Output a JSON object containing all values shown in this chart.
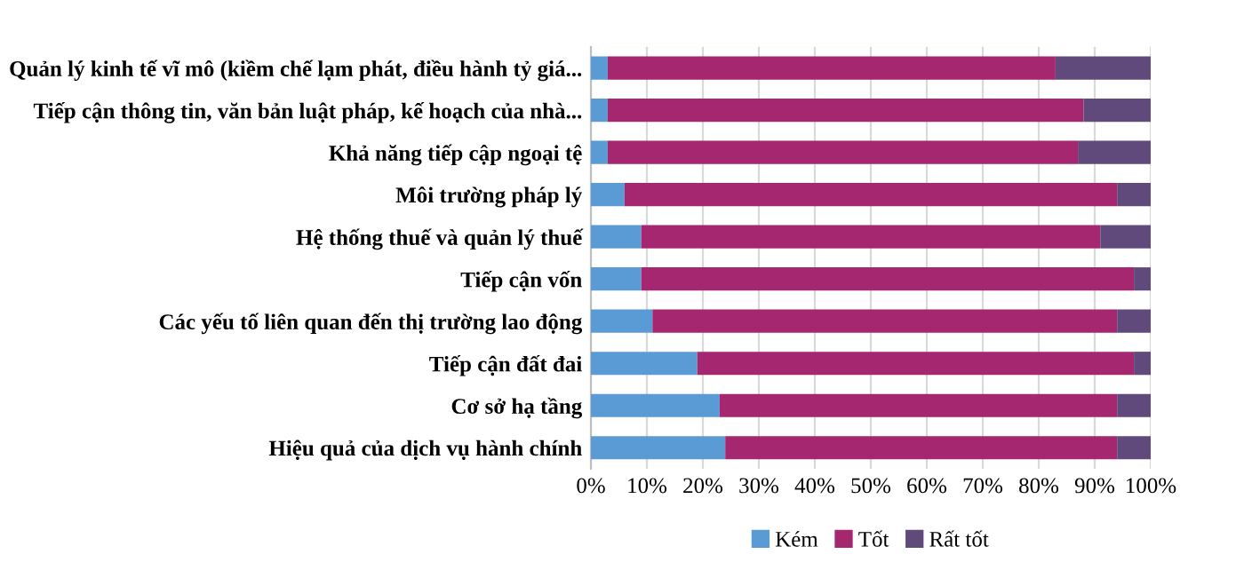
{
  "chart_data": {
    "type": "bar",
    "orientation": "horizontal",
    "stacked": true,
    "categories": [
      "Quản lý kinh tế vĩ mô (kiềm chế lạm phát, điều hành tỷ giá...",
      "Tiếp cận thông tin, văn bản luật pháp, kế hoạch của nhà...",
      "Khả năng tiếp cập ngoại tệ",
      "Môi trường pháp lý",
      "Hệ thống thuế và quản lý thuế",
      "Tiếp cận vốn",
      "Các yếu tố liên quan đến thị trường lao động",
      "Tiếp cận đất đai",
      "Cơ sở hạ tầng",
      "Hiệu quả của dịch vụ hành chính"
    ],
    "series": [
      {
        "name": "Kém",
        "color": "#5b9bd5",
        "values": [
          3,
          3,
          3,
          6,
          9,
          9,
          11,
          19,
          23,
          24
        ]
      },
      {
        "name": "Tốt",
        "color": "#a5276f",
        "values": [
          80,
          85,
          84,
          88,
          82,
          88,
          83,
          78,
          71,
          70
        ]
      },
      {
        "name": "Rất tốt",
        "color": "#604a7b",
        "values": [
          17,
          12,
          13,
          6,
          9,
          3,
          6,
          3,
          6,
          6
        ]
      }
    ],
    "xlim": [
      0,
      100
    ],
    "xticks": [
      {
        "value": 0,
        "label": "0%"
      },
      {
        "value": 10,
        "label": "10%"
      },
      {
        "value": 20,
        "label": "20%"
      },
      {
        "value": 30,
        "label": "30%"
      },
      {
        "value": 40,
        "label": "40%"
      },
      {
        "value": 50,
        "label": "50%"
      },
      {
        "value": 60,
        "label": "60%"
      },
      {
        "value": 70,
        "label": "70%"
      },
      {
        "value": 80,
        "label": "80%"
      },
      {
        "value": 90,
        "label": "90%"
      },
      {
        "value": 100,
        "label": "100%"
      }
    ],
    "grid": "x",
    "legend": "bottom"
  }
}
